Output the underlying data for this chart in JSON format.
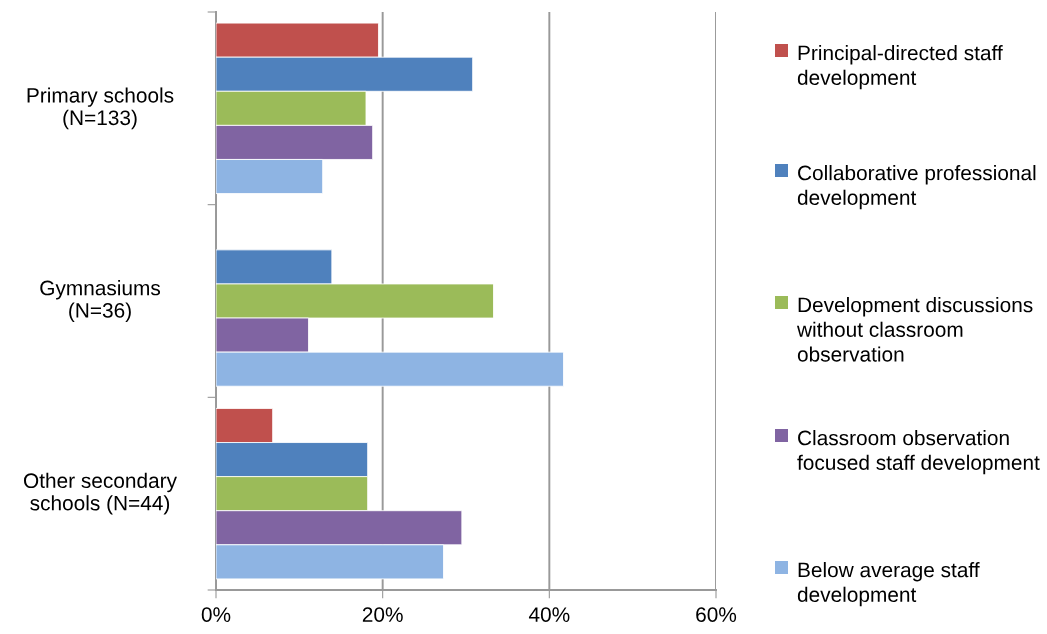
{
  "chart_data": {
    "type": "bar",
    "orientation": "horizontal",
    "categories": [
      "Primary schools (N=133)",
      "Gymnasiums (N=36)",
      "Other secondary schools (N=44)"
    ],
    "series": [
      {
        "name": "Principal-directed staff development",
        "color": "#c0504d",
        "values": [
          19.5,
          null,
          6.8
        ]
      },
      {
        "name": "Collaborative professional development",
        "color": "#4f81bd",
        "values": [
          30.8,
          13.9,
          18.2
        ]
      },
      {
        "name": "Development discussions without classroom observation",
        "color": "#9bbb59",
        "values": [
          18.0,
          33.3,
          18.2
        ]
      },
      {
        "name": "Classroom observation focused staff development",
        "color": "#8064a2",
        "values": [
          18.8,
          11.1,
          29.5
        ]
      },
      {
        "name": "Below average staff development",
        "color": "#8eb4e3",
        "values": [
          12.8,
          41.7,
          27.3
        ]
      }
    ],
    "xlim": [
      0,
      60
    ],
    "xticks": [
      {
        "value": 0,
        "label": "0%"
      },
      {
        "value": 20,
        "label": "20%"
      },
      {
        "value": 40,
        "label": "40%"
      },
      {
        "value": 60,
        "label": "60%"
      }
    ],
    "grid": "x",
    "legend": "right"
  }
}
